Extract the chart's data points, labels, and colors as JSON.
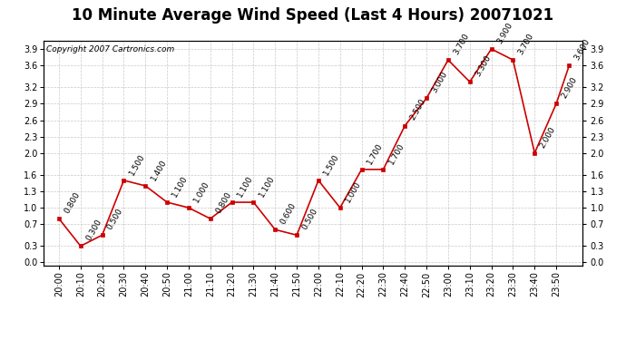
{
  "title": "10 Minute Average Wind Speed (Last 4 Hours) 20071021",
  "copyright_text": "Copyright 2007 Cartronics.com",
  "x_labels": [
    "20:00",
    "20:10",
    "20:20",
    "20:30",
    "20:40",
    "20:50",
    "21:00",
    "21:10",
    "21:20",
    "21:30",
    "21:40",
    "21:50",
    "22:00",
    "22:10",
    "22:20",
    "22:30",
    "22:40",
    "22:50",
    "23:00",
    "23:10",
    "23:20",
    "23:30",
    "23:40",
    "23:50"
  ],
  "y_values": [
    0.8,
    0.3,
    0.5,
    1.5,
    1.4,
    1.1,
    1.0,
    0.8,
    1.1,
    1.1,
    0.6,
    0.5,
    1.5,
    1.0,
    1.7,
    1.7,
    2.5,
    3.0,
    3.7,
    3.3,
    3.9,
    3.7,
    2.0,
    2.9
  ],
  "last_point": 3.6,
  "yticks": [
    0.0,
    0.3,
    0.7,
    1.0,
    1.3,
    1.6,
    2.0,
    2.3,
    2.6,
    2.9,
    3.2,
    3.6,
    3.9
  ],
  "ylim_min": -0.05,
  "ylim_max": 4.05,
  "line_color": "#cc0000",
  "marker_color": "#cc0000",
  "bg_color": "#ffffff",
  "grid_color": "#bbbbbb",
  "title_fontsize": 12,
  "annotation_fontsize": 6.5,
  "copyright_fontsize": 6.5,
  "annotations": [
    [
      0,
      0.8,
      "0.800"
    ],
    [
      1,
      0.3,
      "0.300"
    ],
    [
      2,
      0.5,
      "0.500"
    ],
    [
      3,
      1.5,
      "1.500"
    ],
    [
      4,
      1.4,
      "1.400"
    ],
    [
      5,
      1.1,
      "1.100"
    ],
    [
      6,
      1.0,
      "1.000"
    ],
    [
      7,
      0.8,
      "0.800"
    ],
    [
      8,
      1.1,
      "1.100"
    ],
    [
      9,
      1.1,
      "1.100"
    ],
    [
      10,
      0.6,
      "0.600"
    ],
    [
      11,
      0.5,
      "0.500"
    ],
    [
      12,
      1.5,
      "1.500"
    ],
    [
      13,
      1.0,
      "1.000"
    ],
    [
      14,
      1.7,
      "1.700"
    ],
    [
      15,
      1.7,
      "1.700"
    ],
    [
      16,
      2.5,
      "2.500"
    ],
    [
      17,
      3.0,
      "3.000"
    ],
    [
      18,
      3.7,
      "3.700"
    ],
    [
      19,
      3.3,
      "3.300"
    ],
    [
      20,
      3.9,
      "3.900"
    ],
    [
      21,
      3.7,
      "3.700"
    ],
    [
      22,
      2.0,
      "2.000"
    ],
    [
      23,
      2.9,
      "2.900"
    ]
  ]
}
